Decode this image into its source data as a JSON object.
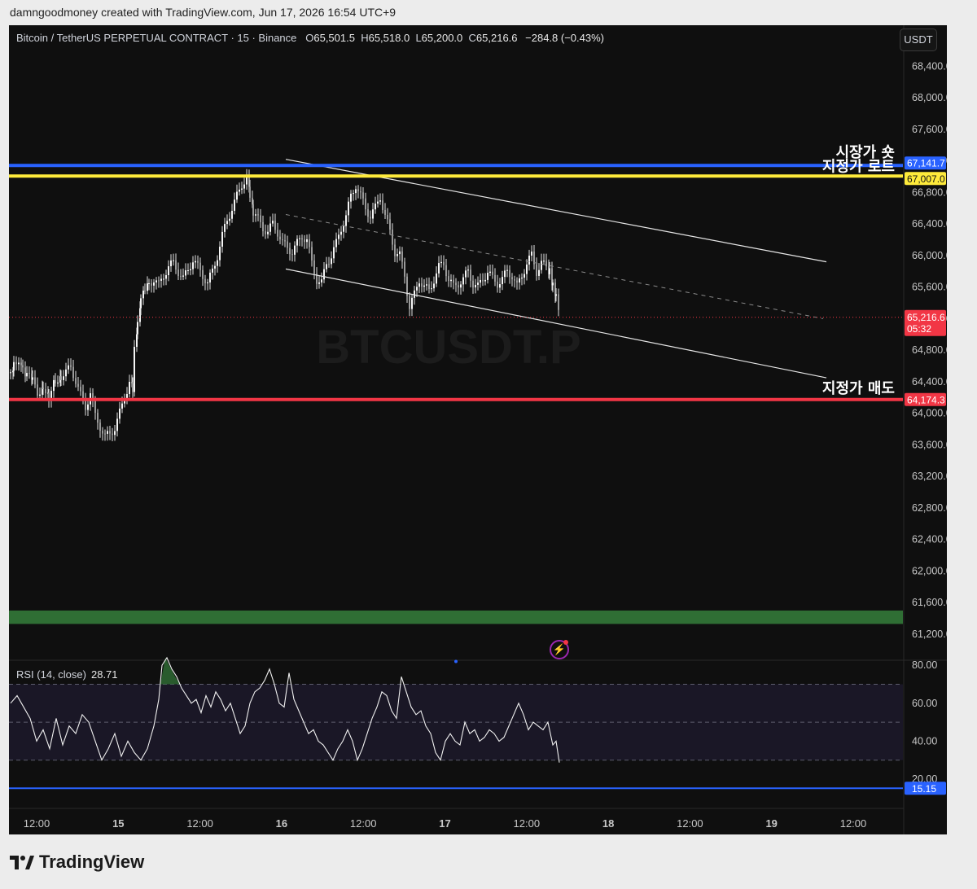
{
  "caption": "damngoodmoney created with TradingView.com, Jun 17, 2026 16:54 UTC+9",
  "legend": {
    "symbol": "Bitcoin / TetherUS PERPETUAL CONTRACT · 15 · Binance",
    "open_label": "O",
    "open": "65,501.5",
    "high_label": "H",
    "high": "65,518.0",
    "low_label": "L",
    "low": "65,200.0",
    "close_label": "C",
    "close": "65,216.6",
    "change": "−284.8 (−0.43%)"
  },
  "currency_button": "USDT",
  "watermark": "BTCUSDT.P",
  "rsi_legend": {
    "label": "RSI (14, close)",
    "value": "28.71"
  },
  "brand": "TradingView",
  "chart_data": [
    {
      "type": "candlestick",
      "title": "Bitcoin / TetherUS PERPETUAL CONTRACT · 15 · Binance",
      "ylim": [
        61000,
        68800
      ],
      "y_ticks": [
        "68,400.0",
        "68,000.0",
        "67,600.0",
        "67,200.0",
        "66,800.0",
        "66,400.0",
        "66,000.0",
        "65,600.0",
        "65,200.0",
        "64,800.0",
        "64,400.0",
        "64,000.0",
        "63,600.0",
        "63,200.0",
        "62,800.0",
        "62,400.0",
        "62,000.0",
        "61,600.0",
        "61,200.0"
      ],
      "x_ticks": [
        "12:00",
        "15",
        "12:00",
        "16",
        "12:00",
        "17",
        "12:00",
        "18",
        "12:00",
        "19",
        "12:00"
      ],
      "price_path": [
        [
          0,
          64520
        ],
        [
          4,
          64620
        ],
        [
          10,
          64700
        ],
        [
          15,
          64560
        ],
        [
          20,
          64480
        ],
        [
          27,
          64400
        ],
        [
          33,
          64250
        ],
        [
          40,
          64360
        ],
        [
          47,
          64220
        ],
        [
          55,
          64420
        ],
        [
          62,
          64480
        ],
        [
          68,
          64520
        ],
        [
          74,
          64580
        ],
        [
          80,
          64420
        ],
        [
          86,
          64220
        ],
        [
          92,
          64080
        ],
        [
          98,
          64260
        ],
        [
          104,
          63960
        ],
        [
          110,
          63840
        ],
        [
          116,
          63700
        ],
        [
          122,
          63740
        ],
        [
          128,
          63820
        ],
        [
          134,
          64000
        ],
        [
          140,
          64200
        ],
        [
          146,
          64400
        ],
        [
          150,
          64300
        ],
        [
          152,
          64800
        ],
        [
          156,
          65100
        ],
        [
          160,
          65400
        ],
        [
          165,
          65600
        ],
        [
          170,
          65650
        ],
        [
          176,
          65700
        ],
        [
          182,
          65620
        ],
        [
          188,
          65750
        ],
        [
          194,
          65860
        ],
        [
          200,
          65900
        ],
        [
          206,
          65800
        ],
        [
          212,
          65700
        ],
        [
          218,
          65820
        ],
        [
          224,
          65950
        ],
        [
          230,
          65850
        ],
        [
          236,
          65750
        ],
        [
          242,
          65650
        ],
        [
          248,
          65800
        ],
        [
          254,
          66000
        ],
        [
          260,
          66250
        ],
        [
          266,
          66450
        ],
        [
          272,
          66600
        ],
        [
          278,
          66750
        ],
        [
          284,
          66900
        ],
        [
          290,
          67000
        ],
        [
          294,
          66750
        ],
        [
          298,
          66550
        ],
        [
          304,
          66450
        ],
        [
          310,
          66350
        ],
        [
          316,
          66300
        ],
        [
          322,
          66400
        ],
        [
          328,
          66300
        ],
        [
          334,
          66150
        ],
        [
          340,
          66100
        ],
        [
          346,
          66050
        ],
        [
          352,
          66150
        ],
        [
          358,
          66250
        ],
        [
          364,
          66200
        ],
        [
          370,
          65900
        ],
        [
          376,
          65700
        ],
        [
          382,
          65650
        ],
        [
          388,
          65900
        ],
        [
          394,
          66000
        ],
        [
          400,
          66150
        ],
        [
          406,
          66350
        ],
        [
          412,
          66500
        ],
        [
          418,
          66750
        ],
        [
          424,
          66900
        ],
        [
          430,
          66750
        ],
        [
          436,
          66600
        ],
        [
          442,
          66500
        ],
        [
          448,
          66600
        ],
        [
          454,
          66750
        ],
        [
          460,
          66500
        ],
        [
          466,
          66300
        ],
        [
          472,
          66050
        ],
        [
          478,
          66000
        ],
        [
          484,
          65750
        ],
        [
          490,
          65350
        ],
        [
          496,
          65500
        ],
        [
          502,
          65700
        ],
        [
          508,
          65600
        ],
        [
          514,
          65550
        ],
        [
          520,
          65700
        ],
        [
          526,
          65850
        ],
        [
          532,
          65900
        ],
        [
          538,
          65700
        ],
        [
          544,
          65600
        ],
        [
          550,
          65650
        ],
        [
          556,
          65700
        ],
        [
          562,
          65800
        ],
        [
          568,
          65650
        ],
        [
          574,
          65600
        ],
        [
          580,
          65700
        ],
        [
          586,
          65800
        ],
        [
          592,
          65700
        ],
        [
          598,
          65650
        ],
        [
          604,
          65700
        ],
        [
          610,
          65800
        ],
        [
          616,
          65750
        ],
        [
          622,
          65600
        ],
        [
          628,
          65750
        ],
        [
          634,
          65900
        ],
        [
          640,
          66000
        ],
        [
          646,
          65800
        ],
        [
          652,
          65900
        ],
        [
          658,
          65850
        ],
        [
          662,
          65800
        ],
        [
          666,
          65600
        ],
        [
          670,
          65450
        ],
        [
          674,
          65220
        ]
      ],
      "horizontal_levels": [
        {
          "name": "시장가 숏",
          "price": 67141.7,
          "price_label": "67,141.7",
          "color": "#2962ff"
        },
        {
          "name": "지정가 로트",
          "price": 67007.0,
          "price_label": "67,007.0",
          "color": "#ffeb3b"
        },
        {
          "name": "지정가 매도",
          "price": 64174.3,
          "price_label": "64,174.3",
          "color": "#f23645"
        }
      ],
      "last_price": {
        "value": "65,216.6",
        "countdown": "05:32",
        "color": "#f23645"
      },
      "zone": {
        "from": 61500,
        "to": 61330,
        "color": "#2f6e34"
      },
      "channel": [
        {
          "x1": 340,
          "y1": 67220,
          "x2": 1004,
          "y2": 65920
        },
        {
          "x1": 340,
          "y1": 65830,
          "x2": 1004,
          "y2": 64450
        }
      ],
      "mid_line": {
        "x1": 340,
        "y1": 66520,
        "x2": 1000,
        "y2": 65200
      }
    },
    {
      "type": "line",
      "title": "RSI (14, close)",
      "ylim": [
        10,
        82
      ],
      "y_ticks": [
        "80.00",
        "60.00",
        "40.00",
        "20.00"
      ],
      "bands": {
        "upper": 70,
        "mid": 50,
        "lower": 30
      },
      "level_line": {
        "value": "15.15",
        "color": "#2962ff"
      },
      "values_path": [
        [
          0,
          60
        ],
        [
          8,
          64
        ],
        [
          16,
          58
        ],
        [
          24,
          52
        ],
        [
          32,
          40
        ],
        [
          40,
          46
        ],
        [
          48,
          36
        ],
        [
          56,
          52
        ],
        [
          64,
          38
        ],
        [
          72,
          48
        ],
        [
          80,
          44
        ],
        [
          88,
          54
        ],
        [
          96,
          50
        ],
        [
          104,
          40
        ],
        [
          112,
          30
        ],
        [
          120,
          36
        ],
        [
          128,
          44
        ],
        [
          136,
          32
        ],
        [
          144,
          40
        ],
        [
          152,
          34
        ],
        [
          160,
          30
        ],
        [
          168,
          36
        ],
        [
          176,
          48
        ],
        [
          182,
          62
        ],
        [
          186,
          80
        ],
        [
          192,
          84
        ],
        [
          198,
          78
        ],
        [
          204,
          74
        ],
        [
          210,
          68
        ],
        [
          216,
          64
        ],
        [
          222,
          60
        ],
        [
          228,
          62
        ],
        [
          234,
          55
        ],
        [
          240,
          64
        ],
        [
          246,
          58
        ],
        [
          252,
          66
        ],
        [
          258,
          62
        ],
        [
          264,
          56
        ],
        [
          270,
          60
        ],
        [
          276,
          52
        ],
        [
          282,
          44
        ],
        [
          288,
          48
        ],
        [
          294,
          60
        ],
        [
          300,
          66
        ],
        [
          306,
          68
        ],
        [
          312,
          72
        ],
        [
          318,
          78
        ],
        [
          324,
          70
        ],
        [
          330,
          60
        ],
        [
          336,
          58
        ],
        [
          342,
          76
        ],
        [
          348,
          62
        ],
        [
          354,
          56
        ],
        [
          360,
          50
        ],
        [
          366,
          44
        ],
        [
          372,
          46
        ],
        [
          378,
          40
        ],
        [
          384,
          38
        ],
        [
          390,
          34
        ],
        [
          396,
          30
        ],
        [
          402,
          36
        ],
        [
          408,
          40
        ],
        [
          414,
          46
        ],
        [
          420,
          40
        ],
        [
          426,
          30
        ],
        [
          432,
          36
        ],
        [
          438,
          44
        ],
        [
          444,
          52
        ],
        [
          450,
          58
        ],
        [
          456,
          66
        ],
        [
          462,
          64
        ],
        [
          468,
          56
        ],
        [
          474,
          52
        ],
        [
          480,
          74
        ],
        [
          486,
          66
        ],
        [
          492,
          58
        ],
        [
          498,
          54
        ],
        [
          504,
          56
        ],
        [
          510,
          48
        ],
        [
          516,
          44
        ],
        [
          522,
          34
        ],
        [
          528,
          30
        ],
        [
          534,
          40
        ],
        [
          540,
          44
        ],
        [
          546,
          40
        ],
        [
          552,
          38
        ],
        [
          558,
          50
        ],
        [
          564,
          44
        ],
        [
          570,
          46
        ],
        [
          576,
          40
        ],
        [
          582,
          42
        ],
        [
          588,
          46
        ],
        [
          594,
          44
        ],
        [
          600,
          40
        ],
        [
          606,
          42
        ],
        [
          612,
          48
        ],
        [
          618,
          54
        ],
        [
          624,
          60
        ],
        [
          630,
          54
        ],
        [
          636,
          46
        ],
        [
          642,
          50
        ],
        [
          648,
          48
        ],
        [
          654,
          46
        ],
        [
          660,
          50
        ],
        [
          666,
          38
        ],
        [
          670,
          40
        ],
        [
          674,
          28.71
        ]
      ]
    }
  ]
}
